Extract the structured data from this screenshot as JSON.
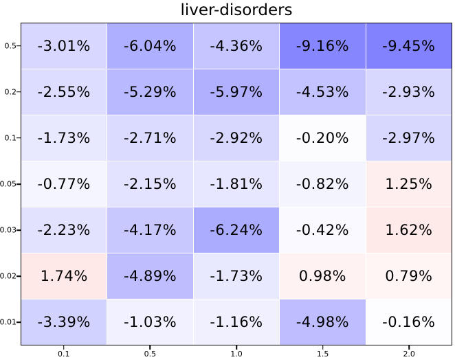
{
  "title": "liver-disorders",
  "chart_data": {
    "type": "heatmap",
    "title": "liver-disorders",
    "xlabel": "",
    "ylabel": "",
    "x_tick_labels": [
      "0.1",
      "0.5",
      "1.0",
      "1.5",
      "2.0"
    ],
    "y_tick_labels": [
      "0.5",
      "0.2",
      "0.1",
      "0.05",
      "0.03",
      "0.02",
      "0.01"
    ],
    "cell_text": [
      [
        "-3.01%",
        "-6.04%",
        "-4.36%",
        "-9.16%",
        "-9.45%"
      ],
      [
        "-2.55%",
        "-5.29%",
        "-5.97%",
        "-4.53%",
        "-2.93%"
      ],
      [
        "-1.73%",
        "-2.71%",
        "-2.92%",
        "-0.20%",
        "-2.97%"
      ],
      [
        "-0.77%",
        "-2.15%",
        "-1.81%",
        "-0.82%",
        "1.25%"
      ],
      [
        "-2.23%",
        "-4.17%",
        "-6.24%",
        "-0.42%",
        "1.62%"
      ],
      [
        "1.74%",
        "-4.89%",
        "-1.73%",
        "0.98%",
        "0.79%"
      ],
      [
        "-3.39%",
        "-1.03%",
        "-1.16%",
        "-4.98%",
        "-0.16%"
      ]
    ],
    "values": [
      [
        -3.01,
        -6.04,
        -4.36,
        -9.16,
        -9.45
      ],
      [
        -2.55,
        -5.29,
        -5.97,
        -4.53,
        -2.93
      ],
      [
        -1.73,
        -2.71,
        -2.92,
        -0.2,
        -2.97
      ],
      [
        -0.77,
        -2.15,
        -1.81,
        -0.82,
        1.25
      ],
      [
        -2.23,
        -4.17,
        -6.24,
        -0.42,
        1.62
      ],
      [
        1.74,
        -4.89,
        -1.73,
        0.98,
        0.79
      ],
      [
        -3.39,
        -1.03,
        -1.16,
        -4.98,
        -0.16
      ]
    ],
    "colormap": "diverging blue-white-red",
    "negative_extreme_color": "#8282ff",
    "positive_extreme_color": "#ff8282",
    "zero_color": "#ffffff",
    "grid": false,
    "legend": "none"
  }
}
